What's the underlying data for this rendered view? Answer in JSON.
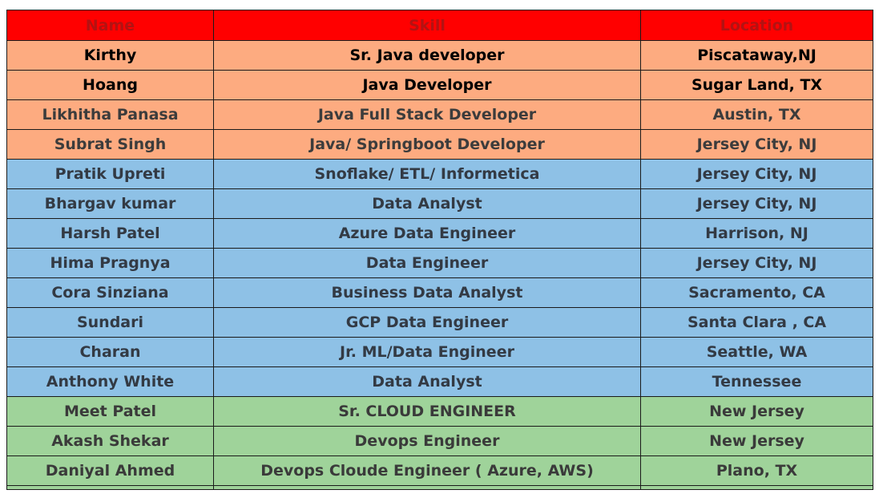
{
  "table": {
    "headers": [
      "Name",
      "Skill",
      "Location"
    ],
    "rows": [
      {
        "name": "Kirthy",
        "skill": "Sr. Java developer",
        "location": "Piscataway,NJ",
        "group": "orange",
        "emphasis": true
      },
      {
        "name": "Hoang",
        "skill": "Java Developer",
        "location": "Sugar Land, TX",
        "group": "orange",
        "emphasis": true
      },
      {
        "name": "Likhitha Panasa",
        "skill": "Java Full Stack Developer",
        "location": "Austin, TX",
        "group": "orange",
        "emphasis": false
      },
      {
        "name": "Subrat Singh",
        "skill": "Java/ Springboot Developer",
        "location": "Jersey City, NJ",
        "group": "orange",
        "emphasis": false
      },
      {
        "name": "Pratik Upreti",
        "skill": "Snoflake/ ETL/ Informetica",
        "location": "Jersey City, NJ",
        "group": "blue",
        "emphasis": false
      },
      {
        "name": "Bhargav kumar",
        "skill": "Data Analyst",
        "location": "Jersey City, NJ",
        "group": "blue",
        "emphasis": false
      },
      {
        "name": "Harsh Patel",
        "skill": "Azure Data Engineer",
        "location": "Harrison, NJ",
        "group": "blue",
        "emphasis": false
      },
      {
        "name": "Hima Pragnya",
        "skill": "Data Engineer",
        "location": "Jersey City, NJ",
        "group": "blue",
        "emphasis": false
      },
      {
        "name": "Cora Sinziana",
        "skill": "Business Data Analyst",
        "location": "Sacramento, CA",
        "group": "blue",
        "emphasis": false
      },
      {
        "name": "Sundari",
        "skill": "GCP Data Engineer",
        "location": "Santa Clara , CA",
        "group": "blue",
        "emphasis": false
      },
      {
        "name": "Charan",
        "skill": "Jr. ML/Data Engineer",
        "location": "Seattle, WA",
        "group": "blue",
        "emphasis": false
      },
      {
        "name": "Anthony White",
        "skill": "Data Analyst",
        "location": "Tennessee",
        "group": "blue",
        "emphasis": false
      },
      {
        "name": "Meet Patel",
        "skill": "Sr. CLOUD ENGINEER",
        "location": "New Jersey",
        "group": "green",
        "emphasis": false
      },
      {
        "name": "Akash Shekar",
        "skill": "Devops Engineer",
        "location": "New Jersey",
        "group": "green",
        "emphasis": false
      },
      {
        "name": "Daniyal Ahmed",
        "skill": "Devops Cloude Engineer ( Azure, AWS)",
        "location": "Plano, TX",
        "group": "green",
        "emphasis": false
      }
    ]
  },
  "colors": {
    "header_bg": "#ff0000",
    "header_text": "#b31212",
    "orange_row": "#fdab80",
    "blue_row": "#8ec1e6",
    "green_row": "#9fd39a"
  }
}
